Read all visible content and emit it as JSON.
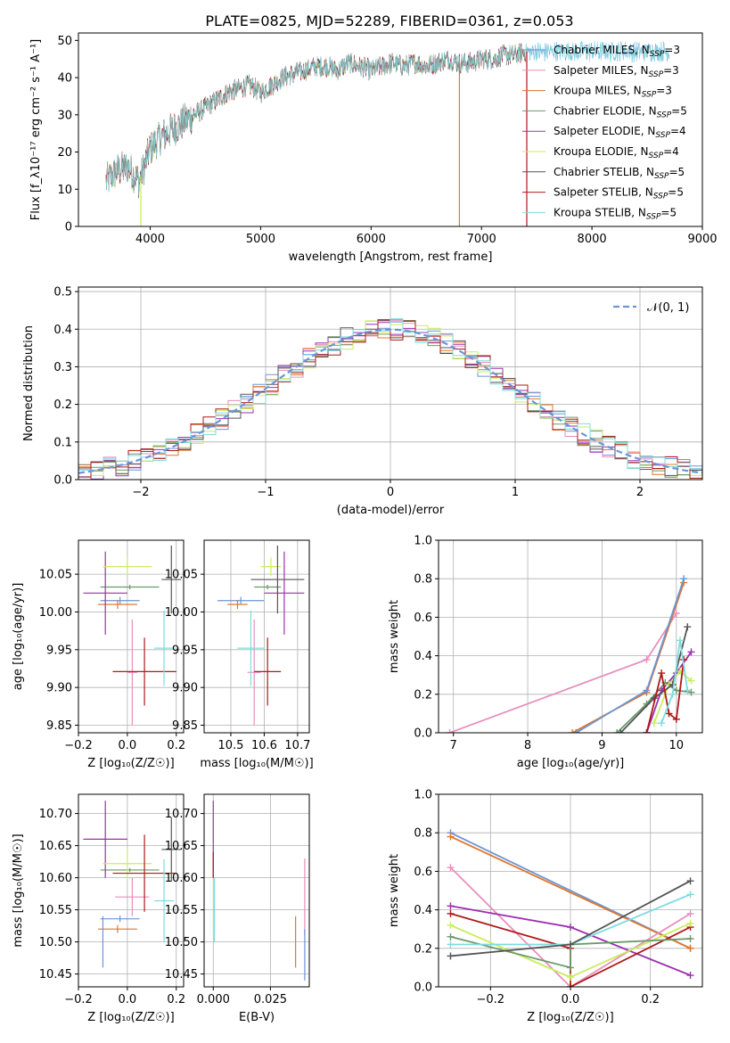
{
  "figure": {
    "title": "PLATE=0825, MJD=52289, FIBERID=0361, z=0.053"
  },
  "colors": {
    "chabrier_miles": "#6b95d6",
    "salpeter_miles": "#e88fbd",
    "kroupa_miles": "#e0772a",
    "chabrier_elodie": "#6a9a6a",
    "salpeter_elodie": "#9b30b0",
    "kroupa_elodie": "#c9ed5c",
    "chabrier_stelib": "#555555",
    "salpeter_stelib": "#b01818",
    "kroupa_stelib": "#7fdbe0",
    "normal": "#6b95d6"
  },
  "legend": [
    {
      "key": "chabrier_miles",
      "name": "Chabrier MILES",
      "nssp": "3"
    },
    {
      "key": "salpeter_miles",
      "name": "Salpeter MILES",
      "nssp": "3"
    },
    {
      "key": "kroupa_miles",
      "name": "Kroupa MILES",
      "nssp": "3"
    },
    {
      "key": "chabrier_elodie",
      "name": "Chabrier ELODIE",
      "nssp": "5"
    },
    {
      "key": "salpeter_elodie",
      "name": "Salpeter ELODIE",
      "nssp": "4"
    },
    {
      "key": "kroupa_elodie",
      "name": "Kroupa ELODIE",
      "nssp": "4"
    },
    {
      "key": "chabrier_stelib",
      "name": "Chabrier STELIB",
      "nssp": "5"
    },
    {
      "key": "salpeter_stelib",
      "name": "Salpeter STELIB",
      "nssp": "5"
    },
    {
      "key": "kroupa_stelib",
      "name": "Kroupa STELIB",
      "nssp": "5"
    }
  ],
  "chart_data": [
    {
      "id": "spectrum",
      "type": "line",
      "xlabel": "wavelength [Angstrom, rest frame]",
      "ylabel": "Flux [f_λ10⁻¹⁷ erg cm⁻² s⁻¹ A⁻¹]",
      "xlim": [
        3350,
        9000
      ],
      "ylim": [
        0,
        52
      ],
      "xticks": [
        "4000",
        "5000",
        "6000",
        "7000",
        "8000",
        "9000"
      ],
      "yticks": [
        "0",
        "10",
        "20",
        "30",
        "40",
        "50"
      ],
      "spectrum_anchors": {
        "wavelength": [
          3600,
          3700,
          3800,
          3900,
          4000,
          4100,
          4200,
          4300,
          4400,
          4500,
          4600,
          4700,
          4800,
          4900,
          5000,
          5100,
          5200,
          5300,
          5400,
          5500,
          5600,
          5700,
          5800,
          5900,
          6000,
          6100,
          6200,
          6300,
          6400,
          6500,
          6600,
          6700,
          6800,
          6900,
          7000,
          7100,
          7200,
          7300,
          7400,
          7500
        ],
        "flux": [
          12,
          15,
          16,
          12,
          21,
          24,
          26,
          28,
          30,
          32,
          34,
          36,
          37,
          38,
          36,
          38,
          40,
          41,
          42,
          43,
          43,
          42,
          44,
          43,
          42,
          43,
          44,
          43,
          44,
          43,
          44,
          45,
          44,
          44,
          45,
          45,
          46,
          46,
          47,
          47
        ]
      },
      "spikes": [
        {
          "x": 3915,
          "y_low": 0,
          "series": "kroupa_elodie"
        },
        {
          "x": 6800,
          "y_low": 0,
          "series": "kroupa_miles"
        },
        {
          "x": 7410,
          "y_low": 0,
          "series": "salpeter_stelib"
        }
      ]
    },
    {
      "id": "residuals",
      "type": "line",
      "xlabel": "(data-model)/error",
      "ylabel": "Normed distribution",
      "xlim": [
        -2.5,
        2.5
      ],
      "ylim": [
        0,
        0.512
      ],
      "xticks": [
        "−2",
        "−1",
        "0",
        "1",
        "2"
      ],
      "yticks": [
        "0.0",
        "0.1",
        "0.2",
        "0.3",
        "0.4",
        "0.5"
      ],
      "legend_label": "𝒩(0, 1)",
      "bin_width": 0.1,
      "histogram_series": [
        "chabrier_miles",
        "salpeter_miles",
        "kroupa_miles",
        "chabrier_elodie",
        "salpeter_elodie",
        "kroupa_elodie",
        "chabrier_stelib",
        "salpeter_stelib",
        "kroupa_stelib"
      ]
    },
    {
      "id": "age-vs-z",
      "type": "scatter",
      "xlabel": "Z [log₁₀(Z/Z☉)]",
      "ylabel": "age [log₁₀(age/yr)]",
      "xlim": [
        -0.2,
        0.23
      ],
      "ylim": [
        9.84,
        10.095
      ],
      "xticks": [
        "−0.2",
        "0.0",
        "0.2"
      ],
      "yticks": [
        "9.85",
        "9.90",
        "9.95",
        "10.00",
        "10.05"
      ],
      "points": [
        {
          "series": "chabrier_miles",
          "x": -0.03,
          "xerr": 0.08,
          "y": 10.015,
          "yerr": 0.005
        },
        {
          "series": "salpeter_miles",
          "x": 0.02,
          "xerr": 0.02,
          "y": 9.92,
          "yerr": 0.07
        },
        {
          "series": "kroupa_miles",
          "x": -0.04,
          "xerr": 0.08,
          "y": 10.01,
          "yerr": 0.006
        },
        {
          "series": "chabrier_elodie",
          "x": 0.01,
          "xerr": 0.12,
          "y": 10.033,
          "yerr": 0.003
        },
        {
          "series": "salpeter_elodie",
          "x": -0.09,
          "xerr": 0.09,
          "y": 10.025,
          "yerr": 0.055
        },
        {
          "series": "kroupa_elodie",
          "x": 0.0,
          "xerr": 0.1,
          "y": 10.06,
          "yerr": 0.012
        },
        {
          "series": "chabrier_stelib",
          "x": 0.18,
          "xerr": 0.04,
          "y": 10.043,
          "yerr": 0.045
        },
        {
          "series": "salpeter_stelib",
          "x": 0.07,
          "xerr": 0.13,
          "y": 9.921,
          "yerr": 0.045
        },
        {
          "series": "kroupa_stelib",
          "x": 0.15,
          "xerr": 0.04,
          "y": 9.952,
          "yerr": 0.05
        }
      ]
    },
    {
      "id": "age-vs-mass",
      "type": "scatter",
      "xlabel": "mass [log₁₀(M/M☉)]",
      "ylabel": "",
      "xlim": [
        10.42,
        10.735
      ],
      "ylim": [
        9.84,
        10.095
      ],
      "xticks": [
        "10.5",
        "10.6",
        "10.7"
      ],
      "yticks": [
        "9.85",
        "9.90",
        "9.95",
        "10.00",
        "10.05"
      ],
      "points": [
        {
          "series": "chabrier_miles",
          "x": 10.53,
          "xerr": 0.07,
          "y": 10.015,
          "yerr": 0.005
        },
        {
          "series": "salpeter_miles",
          "x": 10.57,
          "xerr": 0.02,
          "y": 9.92,
          "yerr": 0.07
        },
        {
          "series": "kroupa_miles",
          "x": 10.52,
          "xerr": 0.03,
          "y": 10.01,
          "yerr": 0.006
        },
        {
          "series": "chabrier_elodie",
          "x": 10.61,
          "xerr": 0.04,
          "y": 10.033,
          "yerr": 0.003
        },
        {
          "series": "salpeter_elodie",
          "x": 10.66,
          "xerr": 0.06,
          "y": 10.025,
          "yerr": 0.055
        },
        {
          "series": "kroupa_elodie",
          "x": 10.62,
          "xerr": 0.03,
          "y": 10.06,
          "yerr": 0.012
        },
        {
          "series": "chabrier_stelib",
          "x": 10.64,
          "xerr": 0.08,
          "y": 10.043,
          "yerr": 0.045
        },
        {
          "series": "salpeter_stelib",
          "x": 10.61,
          "xerr": 0.04,
          "y": 9.921,
          "yerr": 0.045
        },
        {
          "series": "kroupa_stelib",
          "x": 10.56,
          "xerr": 0.04,
          "y": 9.952,
          "yerr": 0.05
        }
      ]
    },
    {
      "id": "massweight-vs-age",
      "type": "line",
      "xlabel": "age [log₁₀(age/yr)]",
      "ylabel": "mass weight",
      "xlim": [
        6.8,
        10.35
      ],
      "ylim": [
        0,
        1.0
      ],
      "xticks": [
        "7",
        "8",
        "9",
        "10"
      ],
      "yticks": [
        "0.0",
        "0.2",
        "0.4",
        "0.6",
        "0.8",
        "1.0"
      ],
      "series": [
        {
          "key": "salpeter_miles",
          "x": [
            6.95,
            9.6,
            10.0
          ],
          "y": [
            0.0,
            0.38,
            0.62
          ]
        },
        {
          "key": "kroupa_miles",
          "x": [
            8.6,
            9.6,
            10.1
          ],
          "y": [
            0.0,
            0.21,
            0.78
          ]
        },
        {
          "key": "chabrier_miles",
          "x": [
            8.65,
            9.6,
            10.1
          ],
          "y": [
            0.0,
            0.22,
            0.8
          ]
        },
        {
          "key": "chabrier_elodie",
          "x": [
            9.2,
            9.6,
            9.85,
            10.0,
            10.2
          ],
          "y": [
            0.0,
            0.15,
            0.26,
            0.22,
            0.21
          ]
        },
        {
          "key": "salpeter_elodie",
          "x": [
            9.6,
            9.8,
            10.0,
            10.2
          ],
          "y": [
            0.0,
            0.22,
            0.31,
            0.42
          ]
        },
        {
          "key": "kroupa_elodie",
          "x": [
            9.7,
            9.9,
            10.05,
            10.2
          ],
          "y": [
            0.05,
            0.25,
            0.32,
            0.27
          ]
        },
        {
          "key": "chabrier_stelib",
          "x": [
            9.25,
            9.7,
            9.95,
            10.15
          ],
          "y": [
            0.0,
            0.18,
            0.25,
            0.55
          ]
        },
        {
          "key": "salpeter_stelib",
          "x": [
            9.6,
            9.8,
            9.9,
            10.0,
            10.1
          ],
          "y": [
            0.0,
            0.31,
            0.1,
            0.07,
            0.38
          ]
        },
        {
          "key": "kroupa_stelib",
          "x": [
            9.8,
            9.95,
            10.05,
            10.15
          ],
          "y": [
            0.05,
            0.2,
            0.48,
            0.22
          ]
        }
      ]
    },
    {
      "id": "mass-vs-z",
      "type": "scatter",
      "xlabel": "Z [log₁₀(Z/Z☉)]",
      "ylabel": "mass [log₁₀(M/M☉)]",
      "xlim": [
        -0.2,
        0.23
      ],
      "ylim": [
        10.43,
        10.73
      ],
      "xticks": [
        "−0.2",
        "0.0",
        "0.2"
      ],
      "yticks": [
        "10.45",
        "10.50",
        "10.55",
        "10.60",
        "10.65",
        "10.70"
      ],
      "points": [
        {
          "series": "chabrier_miles",
          "x": -0.03,
          "xerr": 0.08,
          "y": 10.536,
          "yerr": 0.005
        },
        {
          "series": "salpeter_miles",
          "x": 0.02,
          "xerr": 0.07,
          "y": 10.57,
          "yerr": 0.03
        },
        {
          "series": "kroupa_miles",
          "x": -0.04,
          "xerr": 0.08,
          "y": 10.52,
          "yerr": 0.006
        },
        {
          "series": "chabrier_elodie",
          "x": 0.01,
          "xerr": 0.12,
          "y": 10.612,
          "yerr": 0.003
        },
        {
          "series": "salpeter_elodie",
          "x": -0.09,
          "xerr": 0.09,
          "y": 10.66,
          "yerr": 0.06
        },
        {
          "series": "kroupa_elodie",
          "x": 0.0,
          "xerr": 0.1,
          "y": 10.622,
          "yerr": 0.025
        },
        {
          "series": "chabrier_stelib",
          "x": 0.18,
          "xerr": 0.04,
          "y": 10.644,
          "yerr": 0.05
        },
        {
          "series": "salpeter_stelib",
          "x": 0.07,
          "xerr": 0.13,
          "y": 10.607,
          "yerr": 0.06
        },
        {
          "series": "kroupa_stelib",
          "x": 0.15,
          "xerr": 0.04,
          "y": 10.564,
          "yerr": 0.065
        },
        {
          "series": "chabrier_miles",
          "x": -0.1,
          "xerr": 0.0,
          "y": 10.5,
          "yerr": 0.04
        }
      ]
    },
    {
      "id": "mass-vs-ebv",
      "type": "scatter",
      "xlabel": "E(B-V)",
      "ylabel": "",
      "xlim": [
        -0.004,
        0.042
      ],
      "ylim": [
        10.43,
        10.73
      ],
      "xticks": [
        "0.000",
        "0.025"
      ],
      "yticks": [
        "10.45",
        "10.50",
        "10.55",
        "10.60",
        "10.65",
        "10.70"
      ],
      "points": [
        {
          "series": "salpeter_elodie",
          "x": 0.0,
          "xerr": 0.0,
          "y": 10.66,
          "yerr": 0.06
        },
        {
          "series": "salpeter_stelib",
          "x": 0.0,
          "xerr": 0.0,
          "y": 10.62,
          "yerr": 0.02
        },
        {
          "series": "kroupa_stelib",
          "x": 0.0005,
          "xerr": 0.0,
          "y": 10.55,
          "yerr": 0.05
        },
        {
          "series": "kroupa_miles",
          "x": 0.036,
          "xerr": 0.0,
          "y": 10.5,
          "yerr": 0.04
        },
        {
          "series": "salpeter_miles",
          "x": 0.04,
          "xerr": 0.0,
          "y": 10.57,
          "yerr": 0.06
        },
        {
          "series": "chabrier_miles",
          "x": 0.04,
          "xerr": 0.0,
          "y": 10.48,
          "yerr": 0.04
        }
      ]
    },
    {
      "id": "massweight-vs-z",
      "type": "line",
      "xlabel": "Z [log₁₀(Z/Z☉)]",
      "ylabel": "mass weight",
      "xlim": [
        -0.33,
        0.33
      ],
      "ylim": [
        0,
        1.0
      ],
      "xticks": [
        "−0.2",
        "0.0",
        "0.2"
      ],
      "yticks": [
        "0.0",
        "0.2",
        "0.4",
        "0.6",
        "0.8",
        "1.0"
      ],
      "series": [
        {
          "key": "chabrier_miles",
          "x": [
            -0.3,
            0.3
          ],
          "y": [
            0.8,
            0.2
          ]
        },
        {
          "key": "kroupa_miles",
          "x": [
            -0.3,
            0.3
          ],
          "y": [
            0.78,
            0.2
          ]
        },
        {
          "key": "salpeter_miles",
          "x": [
            -0.3,
            0.0,
            0.3
          ],
          "y": [
            0.62,
            0.0,
            0.38
          ]
        },
        {
          "key": "salpeter_elodie",
          "x": [
            -0.3,
            0.0,
            0.3
          ],
          "y": [
            0.42,
            0.31,
            0.06
          ]
        },
        {
          "key": "salpeter_stelib",
          "x": [
            -0.3,
            0.0,
            0.0,
            0.3
          ],
          "y": [
            0.38,
            0.2,
            0.0,
            0.31
          ]
        },
        {
          "key": "kroupa_elodie",
          "x": [
            -0.3,
            0.0,
            0.3
          ],
          "y": [
            0.32,
            0.05,
            0.33
          ]
        },
        {
          "key": "chabrier_elodie",
          "x": [
            -0.3,
            0.0,
            0.0,
            0.3
          ],
          "y": [
            0.26,
            0.1,
            0.22,
            0.25
          ]
        },
        {
          "key": "kroupa_stelib",
          "x": [
            -0.3,
            0.0,
            0.3
          ],
          "y": [
            0.22,
            0.22,
            0.48
          ]
        },
        {
          "key": "chabrier_stelib",
          "x": [
            -0.3,
            0.0,
            0.3
          ],
          "y": [
            0.16,
            0.22,
            0.55
          ]
        }
      ]
    }
  ]
}
